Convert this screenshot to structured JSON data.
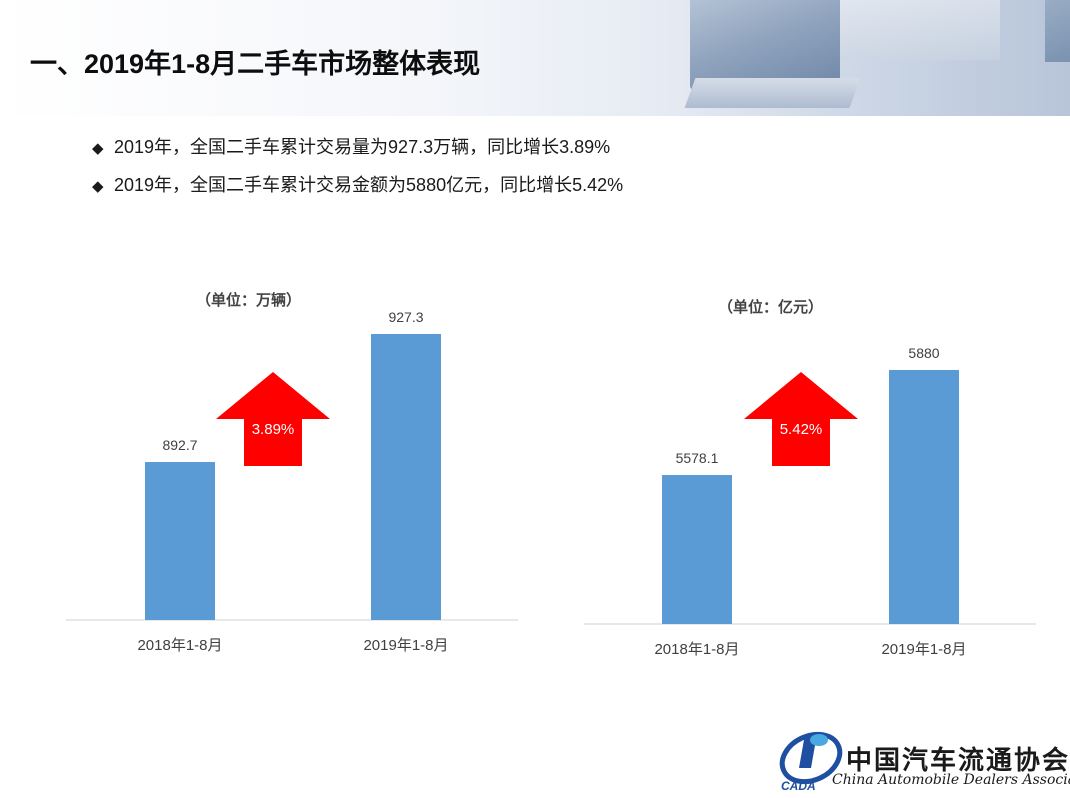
{
  "slide": {
    "title": "一、2019年1-8月二手车市场整体表现",
    "bullets": [
      "2019年，全国二手车累计交易量为927.3万辆，同比增长3.89%",
      "2019年，全国二手车累计交易金额为5880亿元，同比增长5.42%"
    ],
    "bullet_symbol": "◆"
  },
  "chart_data": [
    {
      "type": "bar",
      "unit_label": "（单位：万辆）",
      "categories": [
        "2018年1-8月",
        "2019年1-8月"
      ],
      "values": [
        892.7,
        927.3
      ],
      "value_labels": [
        "892.7",
        "927.3"
      ],
      "growth_label": "3.89%",
      "bar_color": "#5b9bd5",
      "arrow_color": "#ff0000"
    },
    {
      "type": "bar",
      "unit_label": "（单位：亿元）",
      "categories": [
        "2018年1-8月",
        "2019年1-8月"
      ],
      "values": [
        5578.1,
        5880
      ],
      "value_labels": [
        "5578.1",
        "5880"
      ],
      "growth_label": "5.42%",
      "bar_color": "#5b9bd5",
      "arrow_color": "#ff0000"
    }
  ],
  "footer": {
    "org_cn": "中国汽车流通协会",
    "org_en": "China Automobile Dealers Association",
    "logo_abbr": "CADA"
  }
}
